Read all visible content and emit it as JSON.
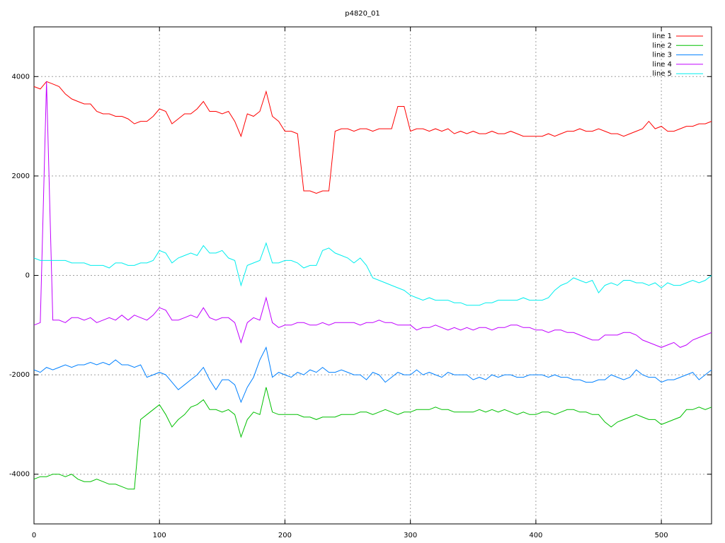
{
  "chart_data": {
    "type": "line",
    "title": "p4820_01",
    "x": [
      0,
      5,
      10,
      15,
      20,
      25,
      30,
      35,
      40,
      45,
      50,
      55,
      60,
      65,
      70,
      75,
      80,
      85,
      90,
      95,
      100,
      105,
      110,
      115,
      120,
      125,
      130,
      135,
      140,
      145,
      150,
      155,
      160,
      165,
      170,
      175,
      180,
      185,
      190,
      195,
      200,
      205,
      210,
      215,
      220,
      225,
      230,
      235,
      240,
      245,
      250,
      255,
      260,
      265,
      270,
      275,
      280,
      285,
      290,
      295,
      300,
      305,
      310,
      315,
      320,
      325,
      330,
      335,
      340,
      345,
      350,
      355,
      360,
      365,
      370,
      375,
      380,
      385,
      390,
      395,
      400,
      405,
      410,
      415,
      420,
      425,
      430,
      435,
      440,
      445,
      450,
      455,
      460,
      465,
      470,
      475,
      480,
      485,
      490,
      495,
      500,
      505,
      510,
      515,
      520,
      525,
      530,
      535,
      540
    ],
    "series": [
      {
        "name": "line 1",
        "color": "#ff0000",
        "values": [
          3800,
          3750,
          3900,
          3850,
          3800,
          3650,
          3550,
          3500,
          3450,
          3450,
          3300,
          3250,
          3250,
          3200,
          3200,
          3150,
          3050,
          3100,
          3100,
          3200,
          3350,
          3300,
          3050,
          3150,
          3250,
          3250,
          3350,
          3500,
          3300,
          3300,
          3250,
          3300,
          3100,
          2800,
          3250,
          3200,
          3300,
          3700,
          3200,
          3100,
          2900,
          2900,
          2850,
          1700,
          1700,
          1650,
          1700,
          1700,
          2900,
          2950,
          2950,
          2900,
          2950,
          2950,
          2900,
          2950,
          2950,
          2950,
          3400,
          3400,
          2900,
          2950,
          2950,
          2900,
          2950,
          2900,
          2950,
          2850,
          2900,
          2850,
          2900,
          2850,
          2850,
          2900,
          2850,
          2850,
          2900,
          2850,
          2800,
          2800,
          2800,
          2800,
          2850,
          2800,
          2850,
          2900,
          2900,
          2950,
          2900,
          2900,
          2950,
          2900,
          2850,
          2850,
          2800,
          2850,
          2900,
          2950,
          3100,
          2950,
          3000,
          2900,
          2900,
          2950,
          3000,
          3000,
          3050,
          3050,
          3100
        ]
      },
      {
        "name": "line 2",
        "color": "#00c000",
        "values": [
          -4100,
          -4050,
          -4050,
          -4000,
          -4000,
          -4050,
          -4000,
          -4100,
          -4150,
          -4150,
          -4100,
          -4150,
          -4200,
          -4200,
          -4250,
          -4300,
          -4300,
          -2900,
          -2800,
          -2700,
          -2600,
          -2800,
          -3050,
          -2900,
          -2800,
          -2650,
          -2600,
          -2500,
          -2700,
          -2700,
          -2750,
          -2700,
          -2800,
          -3250,
          -2900,
          -2750,
          -2800,
          -2250,
          -2750,
          -2800,
          -2800,
          -2800,
          -2800,
          -2850,
          -2850,
          -2900,
          -2850,
          -2850,
          -2850,
          -2800,
          -2800,
          -2800,
          -2750,
          -2750,
          -2800,
          -2750,
          -2700,
          -2750,
          -2800,
          -2750,
          -2750,
          -2700,
          -2700,
          -2700,
          -2650,
          -2700,
          -2700,
          -2750,
          -2750,
          -2750,
          -2750,
          -2700,
          -2750,
          -2700,
          -2750,
          -2700,
          -2750,
          -2800,
          -2750,
          -2800,
          -2800,
          -2750,
          -2750,
          -2800,
          -2750,
          -2700,
          -2700,
          -2750,
          -2750,
          -2800,
          -2800,
          -2950,
          -3050,
          -2950,
          -2900,
          -2850,
          -2800,
          -2850,
          -2900,
          -2900,
          -3000,
          -2950,
          -2900,
          -2850,
          -2700,
          -2700,
          -2650,
          -2700,
          -2650
        ]
      },
      {
        "name": "line 3",
        "color": "#0080ff",
        "values": [
          -1900,
          -1950,
          -1850,
          -1900,
          -1850,
          -1800,
          -1850,
          -1800,
          -1800,
          -1750,
          -1800,
          -1750,
          -1800,
          -1700,
          -1800,
          -1800,
          -1850,
          -1800,
          -2050,
          -2000,
          -1950,
          -2000,
          -2150,
          -2300,
          -2200,
          -2100,
          -2000,
          -1850,
          -2100,
          -2300,
          -2100,
          -2100,
          -2200,
          -2550,
          -2250,
          -2050,
          -1700,
          -1450,
          -2050,
          -1950,
          -2000,
          -2050,
          -1950,
          -2000,
          -1900,
          -1950,
          -1850,
          -1950,
          -1950,
          -1900,
          -1950,
          -2000,
          -2000,
          -2100,
          -1950,
          -2000,
          -2150,
          -2050,
          -1950,
          -2000,
          -2000,
          -1900,
          -2000,
          -1950,
          -2000,
          -2050,
          -1950,
          -2000,
          -2000,
          -2000,
          -2100,
          -2050,
          -2100,
          -2000,
          -2050,
          -2000,
          -2000,
          -2050,
          -2050,
          -2000,
          -2000,
          -2000,
          -2050,
          -2000,
          -2050,
          -2050,
          -2100,
          -2100,
          -2150,
          -2150,
          -2100,
          -2100,
          -2000,
          -2050,
          -2100,
          -2050,
          -1900,
          -2000,
          -2050,
          -2050,
          -2150,
          -2100,
          -2100,
          -2050,
          -2000,
          -1950,
          -2100,
          -2000,
          -1900
        ]
      },
      {
        "name": "line 4",
        "color": "#c000ff",
        "values": [
          -1000,
          -950,
          3900,
          -900,
          -900,
          -950,
          -850,
          -850,
          -900,
          -850,
          -950,
          -900,
          -850,
          -900,
          -800,
          -900,
          -800,
          -850,
          -900,
          -800,
          -650,
          -700,
          -900,
          -900,
          -850,
          -800,
          -850,
          -650,
          -850,
          -900,
          -850,
          -850,
          -950,
          -1350,
          -950,
          -850,
          -900,
          -450,
          -950,
          -1050,
          -1000,
          -1000,
          -950,
          -950,
          -1000,
          -1000,
          -950,
          -1000,
          -950,
          -950,
          -950,
          -950,
          -1000,
          -950,
          -950,
          -900,
          -950,
          -950,
          -1000,
          -1000,
          -1000,
          -1100,
          -1050,
          -1050,
          -1000,
          -1050,
          -1100,
          -1050,
          -1100,
          -1050,
          -1100,
          -1050,
          -1050,
          -1100,
          -1050,
          -1050,
          -1000,
          -1000,
          -1050,
          -1050,
          -1100,
          -1100,
          -1150,
          -1100,
          -1100,
          -1150,
          -1150,
          -1200,
          -1250,
          -1300,
          -1300,
          -1200,
          -1200,
          -1200,
          -1150,
          -1150,
          -1200,
          -1300,
          -1350,
          -1400,
          -1450,
          -1400,
          -1350,
          -1450,
          -1400,
          -1300,
          -1250,
          -1200,
          -1150
        ]
      },
      {
        "name": "line 5",
        "color": "#00eeee",
        "values": [
          350,
          300,
          300,
          300,
          300,
          300,
          250,
          250,
          250,
          200,
          200,
          200,
          150,
          250,
          250,
          200,
          200,
          250,
          250,
          300,
          500,
          450,
          250,
          350,
          400,
          450,
          400,
          600,
          450,
          450,
          500,
          350,
          300,
          -200,
          200,
          250,
          300,
          650,
          250,
          250,
          300,
          300,
          250,
          150,
          200,
          200,
          500,
          550,
          450,
          400,
          350,
          250,
          350,
          200,
          -50,
          -100,
          -150,
          -200,
          -250,
          -300,
          -400,
          -450,
          -500,
          -450,
          -500,
          -500,
          -500,
          -550,
          -550,
          -600,
          -600,
          -600,
          -550,
          -550,
          -500,
          -500,
          -500,
          -500,
          -450,
          -500,
          -500,
          -500,
          -450,
          -300,
          -200,
          -150,
          -50,
          -100,
          -150,
          -100,
          -350,
          -200,
          -150,
          -200,
          -100,
          -100,
          -150,
          -150,
          -200,
          -150,
          -250,
          -150,
          -200,
          -200,
          -150,
          -100,
          -150,
          -100,
          0
        ]
      }
    ],
    "xlim": [
      0,
      540
    ],
    "xticks": [
      0,
      100,
      200,
      300,
      400,
      500
    ],
    "ylim": [
      -5000,
      5000
    ],
    "yticks": [
      -4000,
      -2000,
      0,
      2000,
      4000
    ],
    "grid": true,
    "legend": "top-right"
  }
}
